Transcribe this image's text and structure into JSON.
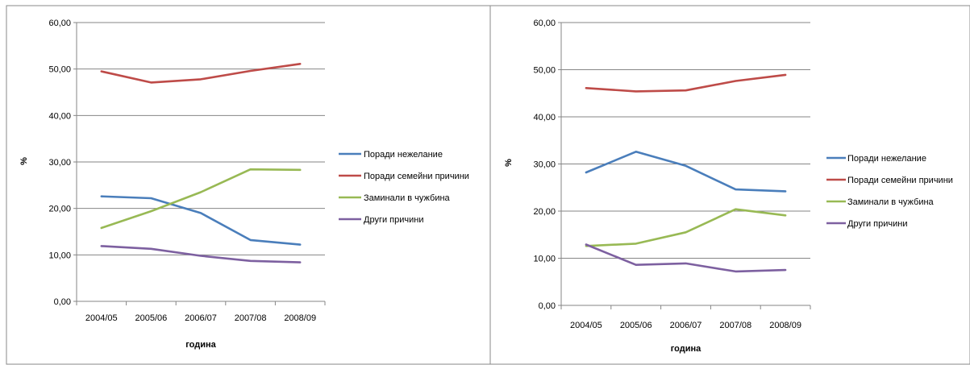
{
  "chart_data": [
    {
      "type": "line",
      "title": "",
      "xlabel": "година",
      "ylabel": "%",
      "ylim": [
        0,
        60
      ],
      "ytick_step": 10,
      "y_tick_format": "comma2",
      "grid": "horizontal",
      "legend_position": "right",
      "categories": [
        "2004/05",
        "2005/06",
        "2006/07",
        "2007/08",
        "2008/09"
      ],
      "series": [
        {
          "name": "Поради нежелание",
          "color": "#4A7EBB",
          "values": [
            22.6,
            22.2,
            19.0,
            13.2,
            12.2
          ]
        },
        {
          "name": "Поради семейни причини",
          "color": "#BE4B48",
          "values": [
            49.5,
            47.1,
            47.8,
            49.6,
            51.1
          ]
        },
        {
          "name": "Заминали  в чужбина",
          "color": "#98B954",
          "values": [
            15.8,
            19.4,
            23.5,
            28.4,
            28.3
          ]
        },
        {
          "name": "Други причини",
          "color": "#7D60A0",
          "values": [
            11.9,
            11.3,
            9.8,
            8.7,
            8.4
          ]
        }
      ]
    },
    {
      "type": "line",
      "title": "",
      "xlabel": "година",
      "ylabel": "%",
      "ylim": [
        0,
        60
      ],
      "ytick_step": 10,
      "y_tick_format": "comma2",
      "grid": "horizontal",
      "legend_position": "right",
      "categories": [
        "2004/05",
        "2005/06",
        "2006/07",
        "2007/08",
        "2008/09"
      ],
      "series": [
        {
          "name": "Поради нежелание",
          "color": "#4A7EBB",
          "values": [
            28.2,
            32.6,
            29.6,
            24.6,
            24.2
          ]
        },
        {
          "name": "Поради семейни причини",
          "color": "#BE4B48",
          "values": [
            46.1,
            45.4,
            45.6,
            47.6,
            48.9
          ]
        },
        {
          "name": "Заминали  в чужбина",
          "color": "#98B954",
          "values": [
            12.6,
            13.1,
            15.5,
            20.4,
            19.1
          ]
        },
        {
          "name": "Други причини",
          "color": "#7D60A0",
          "values": [
            12.9,
            8.6,
            8.9,
            7.2,
            7.5
          ]
        }
      ]
    }
  ]
}
